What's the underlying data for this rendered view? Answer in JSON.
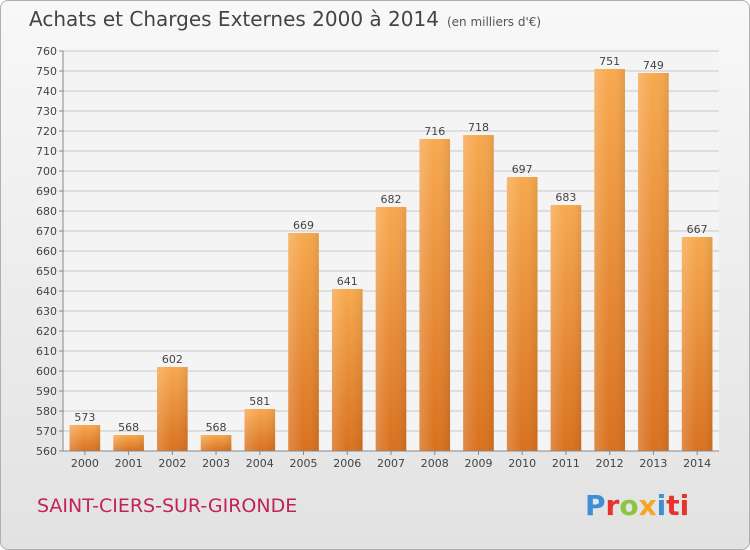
{
  "chart_data": {
    "type": "bar",
    "title": "Achats et Charges Externes 2000 à 2014",
    "unit_label": "(en milliers d'€)",
    "categories": [
      "2000",
      "2001",
      "2002",
      "2003",
      "2004",
      "2005",
      "2006",
      "2007",
      "2008",
      "2009",
      "2010",
      "2011",
      "2012",
      "2013",
      "2014"
    ],
    "values": [
      573,
      568,
      602,
      568,
      581,
      669,
      641,
      682,
      716,
      718,
      697,
      683,
      751,
      749,
      667
    ],
    "ylim": [
      560,
      760
    ],
    "ytick_step": 10,
    "grid": true,
    "xlabel": "",
    "ylabel": "",
    "bar_color_top": "#f7a94f",
    "bar_color_bottom": "#d9711f"
  },
  "footer": {
    "commune": "SAINT-CIERS-SUR-GIRONDE",
    "logo_letters": [
      "P",
      "r",
      "o",
      "x",
      "i",
      "ti"
    ]
  }
}
